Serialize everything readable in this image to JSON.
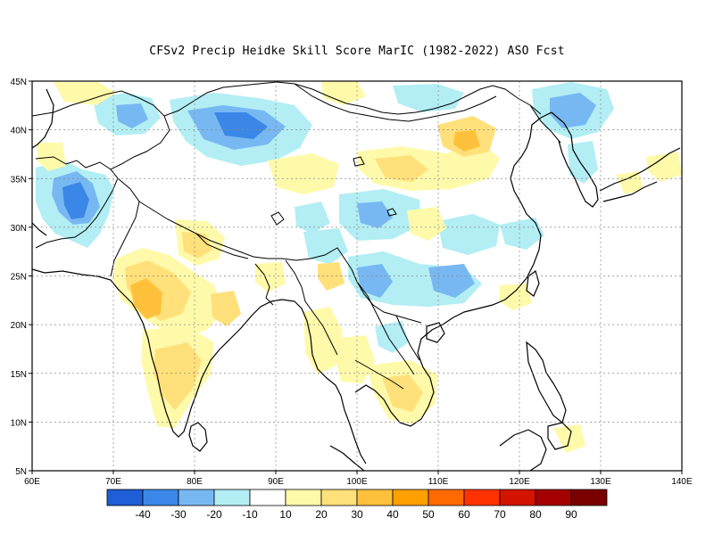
{
  "title": "CFSv2 Precip Heidke Skill Score MarIC (1982-2022) ASO Fcst",
  "chart_data": {
    "type": "heatmap",
    "title": "CFSv2 Precip Heidke Skill Score MarIC (1982-2022) ASO Fcst",
    "xlim": [
      60,
      140
    ],
    "ylim": [
      5,
      45
    ],
    "grid": true,
    "x_ticks": [
      "60E",
      "70E",
      "80E",
      "90E",
      "100E",
      "110E",
      "120E",
      "130E",
      "140E"
    ],
    "y_ticks": [
      "5N",
      "10N",
      "15N",
      "20N",
      "25N",
      "30N",
      "35N",
      "40N",
      "45N"
    ],
    "colorbar": {
      "labels": [
        "-40",
        "-30",
        "-20",
        "-10",
        "10",
        "20",
        "30",
        "40",
        "50",
        "60",
        "70",
        "80",
        "90"
      ],
      "colors": [
        "#1e5ed6",
        "#3a87e8",
        "#78b8f2",
        "#b2eef4",
        "#ffffff",
        "#fffaaa",
        "#ffe07a",
        "#ffc13c",
        "#ff9f00",
        "#ff6a00",
        "#ff3200",
        "#d21400",
        "#a50000",
        "#7a0000"
      ]
    },
    "regions": [
      {
        "lon": 68,
        "lat": 33,
        "value": -30
      },
      {
        "lon": 65,
        "lat": 31,
        "value": -20
      },
      {
        "lon": 86,
        "lat": 40,
        "value": -30
      },
      {
        "lon": 83,
        "lat": 41,
        "value": -20
      },
      {
        "lon": 76,
        "lat": 40,
        "value": -20
      },
      {
        "lon": 127,
        "lat": 41,
        "value": -20
      },
      {
        "lon": 101,
        "lat": 24,
        "value": -20
      },
      {
        "lon": 111,
        "lat": 25,
        "value": -20
      },
      {
        "lon": 101,
        "lat": 31,
        "value": -20
      },
      {
        "lon": 74,
        "lat": 22,
        "value": 30
      },
      {
        "lon": 107,
        "lat": 35,
        "value": 20
      },
      {
        "lon": 112,
        "lat": 38,
        "value": 30
      },
      {
        "lon": 78,
        "lat": 16,
        "value": 20
      },
      {
        "lon": 80,
        "lat": 29,
        "value": 20
      },
      {
        "lon": 94,
        "lat": 35,
        "value": 20
      },
      {
        "lon": 106,
        "lat": 12,
        "value": 20
      },
      {
        "lon": 98,
        "lat": 20,
        "value": 20
      }
    ]
  }
}
